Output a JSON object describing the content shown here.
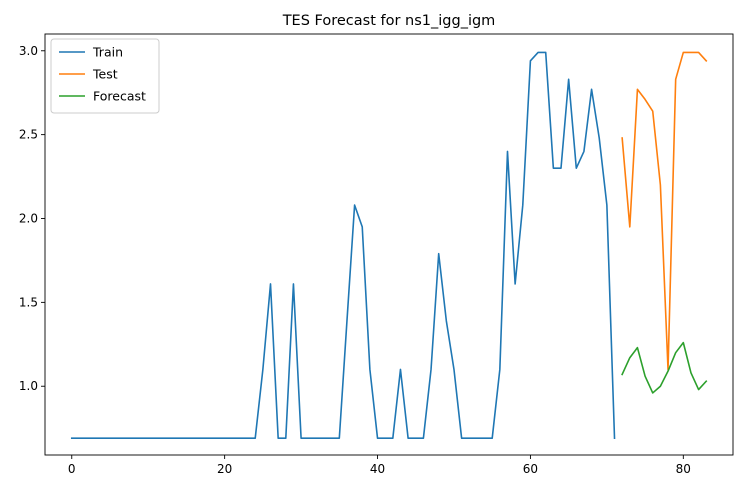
{
  "chart_data": {
    "type": "line",
    "title": "TES Forecast for ns1_igg_igm",
    "xlabel": "",
    "ylabel": "",
    "xlim": [
      -3.5,
      86.5
    ],
    "ylim": [
      0.59,
      3.1
    ],
    "xticks": [
      0,
      20,
      40,
      60,
      80
    ],
    "yticks": [
      1.0,
      1.5,
      2.0,
      2.5,
      3.0
    ],
    "ytick_labels": [
      "1.0",
      "1.5",
      "2.0",
      "2.5",
      "3.0"
    ],
    "grid": false,
    "legend_position": "upper-left",
    "series": [
      {
        "name": "Train",
        "color": "#1f77b4",
        "x": [
          0,
          1,
          2,
          3,
          4,
          5,
          6,
          7,
          8,
          9,
          10,
          11,
          12,
          13,
          14,
          15,
          16,
          17,
          18,
          19,
          20,
          21,
          22,
          23,
          24,
          25,
          26,
          27,
          28,
          29,
          30,
          31,
          32,
          33,
          34,
          35,
          36,
          37,
          38,
          39,
          40,
          41,
          42,
          43,
          44,
          45,
          46,
          47,
          48,
          49,
          50,
          51,
          52,
          53,
          54,
          55,
          56,
          57,
          58,
          59,
          60,
          61,
          62,
          63,
          64,
          65,
          66,
          67,
          68,
          69,
          70,
          71
        ],
        "y": [
          0.69,
          0.69,
          0.69,
          0.69,
          0.69,
          0.69,
          0.69,
          0.69,
          0.69,
          0.69,
          0.69,
          0.69,
          0.69,
          0.69,
          0.69,
          0.69,
          0.69,
          0.69,
          0.69,
          0.69,
          0.69,
          0.69,
          0.69,
          0.69,
          0.69,
          1.1,
          1.61,
          0.69,
          0.69,
          1.61,
          0.69,
          0.69,
          0.69,
          0.69,
          0.69,
          0.69,
          1.39,
          2.08,
          1.95,
          1.1,
          0.69,
          0.69,
          0.69,
          1.1,
          0.69,
          0.69,
          0.69,
          1.1,
          1.79,
          1.39,
          1.1,
          0.69,
          0.69,
          0.69,
          0.69,
          0.69,
          1.1,
          2.4,
          1.61,
          2.08,
          2.94,
          2.99,
          2.99,
          2.3,
          2.3,
          2.83,
          2.3,
          2.4,
          2.77,
          2.48,
          2.08,
          0.69
        ]
      },
      {
        "name": "Test",
        "color": "#ff7f0e",
        "x": [
          72,
          73,
          74,
          75,
          76,
          77,
          78,
          79,
          80,
          81,
          82,
          83
        ],
        "y": [
          2.48,
          1.95,
          2.77,
          2.71,
          2.64,
          2.2,
          1.1,
          2.83,
          2.99,
          2.99,
          2.99,
          2.94
        ]
      },
      {
        "name": "Forecast",
        "color": "#2ca02c",
        "x": [
          72,
          73,
          74,
          75,
          76,
          77,
          78,
          79,
          80,
          81,
          82,
          83
        ],
        "y": [
          1.07,
          1.17,
          1.23,
          1.06,
          0.96,
          1.0,
          1.09,
          1.2,
          1.26,
          1.08,
          0.98,
          1.03
        ]
      }
    ]
  }
}
